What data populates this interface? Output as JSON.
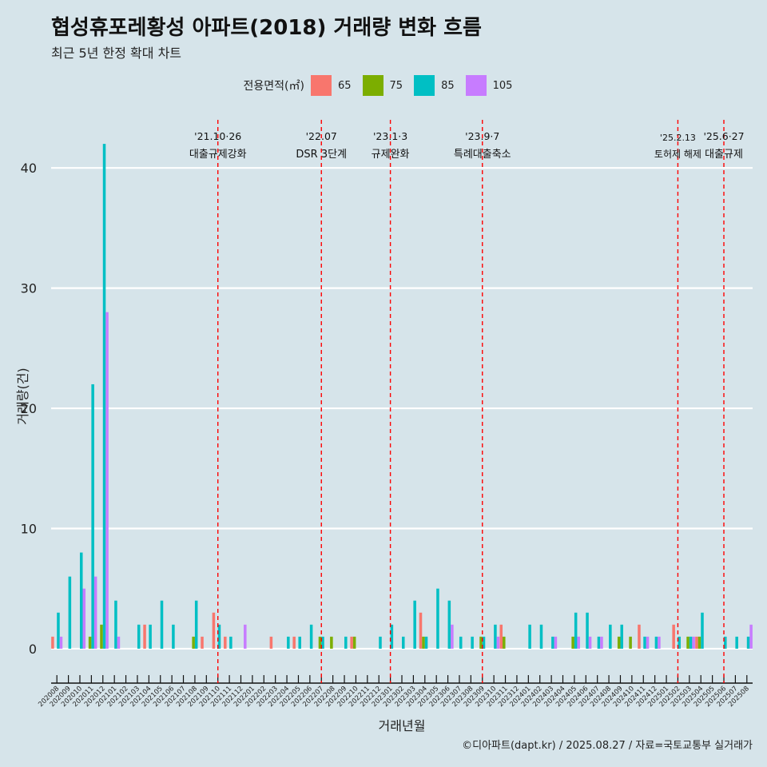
{
  "header": {
    "title": "협성휴포레황성 아파트(2018) 거래량 변화 흐름",
    "subtitle": "최근 5년 한정 확대 차트"
  },
  "legend": {
    "title": "전용면적(㎡)",
    "items": [
      {
        "label": "65",
        "color": "#f8766d"
      },
      {
        "label": "75",
        "color": "#7cae00"
      },
      {
        "label": "85",
        "color": "#00bfc4"
      },
      {
        "label": "105",
        "color": "#c77cff"
      }
    ]
  },
  "caption": "©디아파트(dapt.kr) / 2025.08.27 / 자료=국토교통부 실거래가",
  "chart_data": {
    "type": "bar",
    "xlabel": "거래년월",
    "ylabel": "거래량(건)",
    "ylim": [
      -2,
      44
    ],
    "yticks": [
      0,
      10,
      20,
      30,
      40
    ],
    "grid": "horizontal",
    "legend_position": "top",
    "categories": [
      "202008",
      "202009",
      "202010",
      "202011",
      "202012",
      "202101",
      "202102",
      "202103",
      "202104",
      "202105",
      "202106",
      "202107",
      "202108",
      "202109",
      "202110",
      "202111",
      "202112",
      "202201",
      "202202",
      "202203",
      "202204",
      "202205",
      "202206",
      "202207",
      "202208",
      "202209",
      "202210",
      "202211",
      "202212",
      "202301",
      "202302",
      "202303",
      "202304",
      "202305",
      "202306",
      "202307",
      "202308",
      "202309",
      "202310",
      "202311",
      "202312",
      "202401",
      "202402",
      "202403",
      "202404",
      "202405",
      "202406",
      "202407",
      "202408",
      "202409",
      "202410",
      "202411",
      "202412",
      "202501",
      "202502",
      "202503",
      "202504",
      "202505",
      "202506",
      "202507",
      "202508"
    ],
    "series": [
      {
        "name": "65",
        "color": "#f8766d",
        "values": [
          1,
          0,
          0,
          0,
          0,
          0,
          0,
          0,
          2,
          0,
          0,
          0,
          0,
          1,
          3,
          1,
          0,
          0,
          0,
          1,
          0,
          1,
          0,
          0,
          0,
          0,
          1,
          0,
          0,
          0,
          0,
          0,
          3,
          0,
          0,
          0,
          0,
          0,
          0,
          2,
          0,
          0,
          0,
          0,
          0,
          0,
          0,
          0,
          0,
          0,
          0,
          2,
          0,
          0,
          2,
          0,
          1,
          0,
          0,
          0,
          0
        ]
      },
      {
        "name": "75",
        "color": "#7cae00",
        "values": [
          0,
          0,
          0,
          1,
          2,
          0,
          0,
          0,
          0,
          0,
          0,
          0,
          1,
          0,
          0,
          0,
          0,
          0,
          0,
          0,
          0,
          0,
          0,
          1,
          1,
          0,
          1,
          0,
          0,
          0,
          0,
          0,
          1,
          0,
          0,
          0,
          0,
          1,
          0,
          1,
          0,
          0,
          0,
          0,
          0,
          1,
          0,
          0,
          0,
          1,
          1,
          0,
          0,
          0,
          0,
          1,
          1,
          0,
          0,
          0,
          0
        ]
      },
      {
        "name": "85",
        "color": "#00bfc4",
        "values": [
          3,
          6,
          8,
          22,
          42,
          4,
          0,
          2,
          2,
          4,
          2,
          0,
          4,
          0,
          2,
          1,
          0,
          0,
          0,
          0,
          1,
          1,
          2,
          1,
          0,
          1,
          0,
          0,
          1,
          2,
          1,
          4,
          1,
          5,
          4,
          1,
          1,
          1,
          2,
          0,
          0,
          2,
          2,
          1,
          0,
          3,
          3,
          1,
          2,
          2,
          0,
          1,
          1,
          0,
          1,
          1,
          3,
          0,
          1,
          1,
          1
        ]
      },
      {
        "name": "105",
        "color": "#c77cff",
        "values": [
          1,
          0,
          5,
          6,
          28,
          1,
          0,
          0,
          0,
          0,
          0,
          0,
          0,
          0,
          0,
          0,
          2,
          0,
          0,
          0,
          0,
          0,
          0,
          0,
          0,
          0,
          0,
          0,
          0,
          0,
          0,
          0,
          0,
          0,
          2,
          0,
          0,
          0,
          1,
          0,
          0,
          0,
          0,
          1,
          0,
          1,
          1,
          1,
          0,
          0,
          0,
          1,
          1,
          0,
          0,
          1,
          0,
          0,
          0,
          0,
          2
        ]
      }
    ],
    "annotations": [
      {
        "month": "202110",
        "date": "'21.10·26",
        "label": "대출규제강화"
      },
      {
        "month": "202207",
        "date": "'22.07",
        "label": "DSR 3단계"
      },
      {
        "month": "202301",
        "date": "'23.1·3",
        "label": "규제완화"
      },
      {
        "month": "202309",
        "date": "'23.9·7",
        "label": "특례대출축소"
      },
      {
        "month": "202502",
        "date": "'25.2.13",
        "label": "토허제 해제"
      },
      {
        "month": "202506",
        "date": "'25.6·27",
        "label": "대출규제"
      }
    ]
  }
}
